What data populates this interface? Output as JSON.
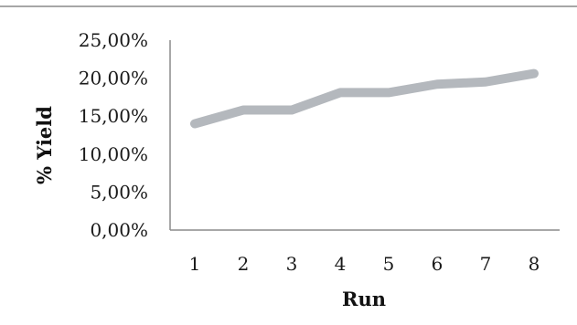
{
  "chart_data": {
    "type": "line",
    "title": "",
    "xlabel": "Run",
    "ylabel": "% Yield",
    "categories": [
      "1",
      "2",
      "3",
      "4",
      "5",
      "6",
      "7",
      "8"
    ],
    "series": [
      {
        "values": [
          14.0,
          15.8,
          15.8,
          18.1,
          18.1,
          19.2,
          19.5,
          20.6
        ],
        "color": "#b4b8bd"
      }
    ],
    "ylim": [
      0,
      25
    ],
    "yticks": [
      0,
      5,
      10,
      15,
      20,
      25
    ],
    "ytick_labels": [
      "0,00%",
      "5,00%",
      "10,00%",
      "15,00%",
      "20,00%",
      "25,00%"
    ],
    "grid": false,
    "legend": "none",
    "axis_color": "#8c8c8c",
    "frame_color": "#a6a6a6"
  }
}
